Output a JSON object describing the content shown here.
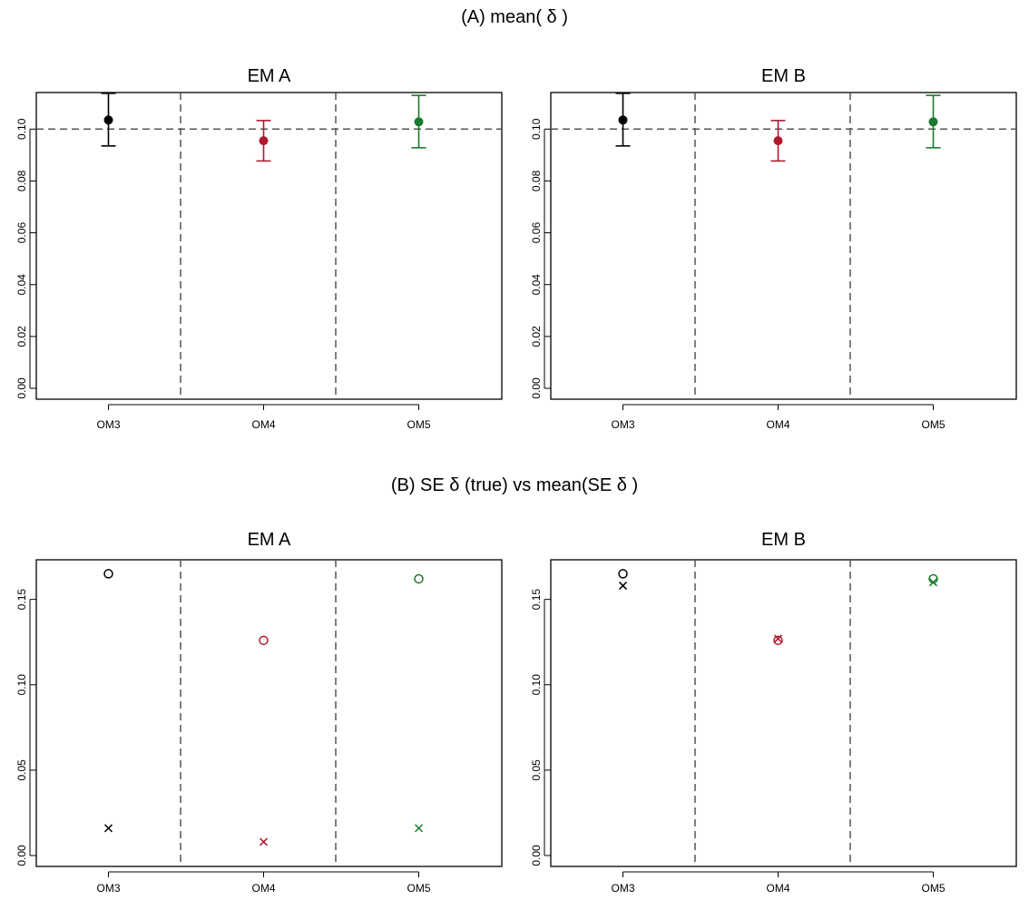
{
  "section_titles": {
    "a": "(A) mean( δ )",
    "b": "(B) SE δ (true) vs mean(SE δ )"
  },
  "colors": {
    "OM3": "#000000",
    "OM4": "#b2182b",
    "OM5": "#1b7a2e",
    "reference_line": "#555555"
  },
  "chart_data": [
    {
      "type": "scatter",
      "title": "EM A",
      "categories": [
        "OM3",
        "OM4",
        "OM5"
      ],
      "yticks": [
        "0.00",
        "0.02",
        "0.04",
        "0.06",
        "0.08",
        "0.10"
      ],
      "ylim": [
        0,
        0.112
      ],
      "reference_y": 0.1,
      "series": [
        {
          "marker": "filled-circle-errorbar",
          "values": [
            0.1035,
            0.0955,
            0.1028
          ],
          "lower": [
            0.0935,
            0.0877,
            0.0928
          ],
          "upper": [
            0.1138,
            0.1033,
            0.113
          ]
        }
      ],
      "grid": false
    },
    {
      "type": "scatter",
      "title": "EM B",
      "categories": [
        "OM3",
        "OM4",
        "OM5"
      ],
      "yticks": [
        "0.00",
        "0.02",
        "0.04",
        "0.06",
        "0.08",
        "0.10"
      ],
      "ylim": [
        0,
        0.112
      ],
      "reference_y": 0.1,
      "series": [
        {
          "marker": "filled-circle-errorbar",
          "values": [
            0.1035,
            0.0955,
            0.1028
          ],
          "lower": [
            0.0935,
            0.0877,
            0.0928
          ],
          "upper": [
            0.1138,
            0.1033,
            0.113
          ]
        }
      ],
      "grid": false
    },
    {
      "type": "scatter",
      "title": "EM A",
      "categories": [
        "OM3",
        "OM4",
        "OM5"
      ],
      "yticks": [
        "0.00",
        "0.05",
        "0.10",
        "0.15"
      ],
      "ylim": [
        0,
        0.17
      ],
      "series": [
        {
          "marker": "open-circle",
          "values": [
            0.165,
            0.126,
            0.162
          ]
        },
        {
          "marker": "cross",
          "values": [
            0.016,
            0.008,
            0.016
          ]
        }
      ],
      "grid": false
    },
    {
      "type": "scatter",
      "title": "EM B",
      "categories": [
        "OM3",
        "OM4",
        "OM5"
      ],
      "yticks": [
        "0.00",
        "0.05",
        "0.10",
        "0.15"
      ],
      "ylim": [
        0,
        0.17
      ],
      "series": [
        {
          "marker": "open-circle",
          "values": [
            0.165,
            0.126,
            0.162
          ]
        },
        {
          "marker": "cross",
          "values": [
            0.158,
            0.127,
            0.16
          ]
        }
      ],
      "grid": false
    }
  ]
}
